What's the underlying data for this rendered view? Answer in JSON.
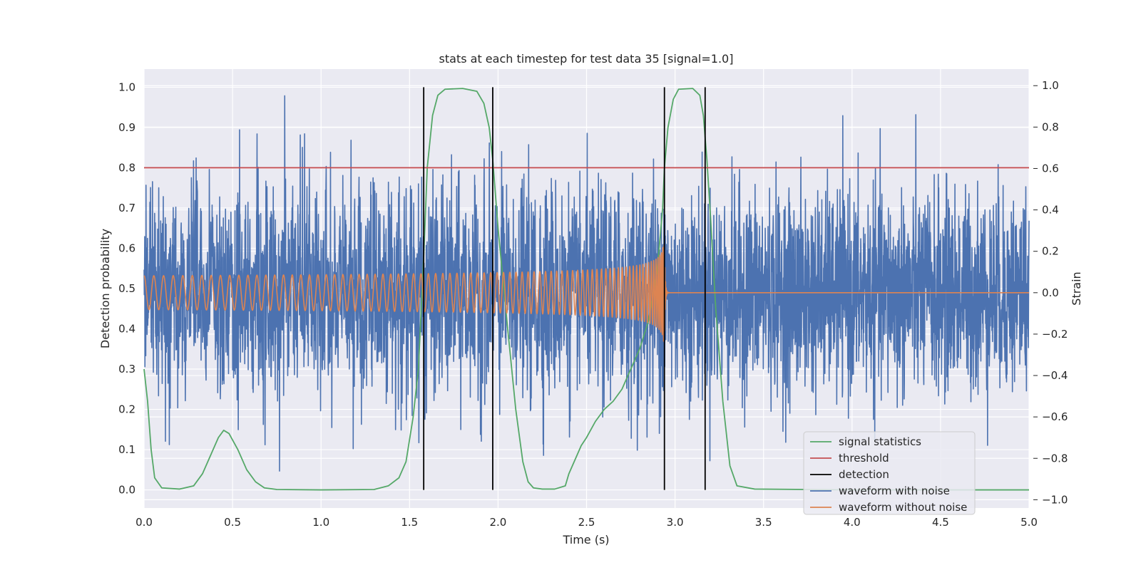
{
  "chart_data": {
    "type": "line",
    "title": "stats at each timestep for test data 35 [signal=1.0]",
    "xlabel": "Time (s)",
    "ylabel_left": "Detection probability",
    "ylabel_right": "Strain",
    "xlim": [
      0.0,
      5.0
    ],
    "ylim_left": [
      -0.045,
      1.045
    ],
    "ylim_right": [
      -1.04,
      1.08
    ],
    "x_ticks": [
      "0.0",
      "0.5",
      "1.0",
      "1.5",
      "2.0",
      "2.5",
      "3.0",
      "3.5",
      "4.0",
      "4.5",
      "5.0"
    ],
    "y_ticks_left": [
      "0.0",
      "0.1",
      "0.2",
      "0.3",
      "0.4",
      "0.5",
      "0.6",
      "0.7",
      "0.8",
      "0.9",
      "1.0"
    ],
    "y_ticks_right": [
      "−1.0",
      "−0.8",
      "−0.6",
      "−0.4",
      "−0.2",
      "0.0",
      "0.2",
      "0.4",
      "0.6",
      "0.8",
      "1.0"
    ],
    "grid": true,
    "legend_position": "lower right",
    "colors": {
      "signal_statistics": "#55a868",
      "threshold": "#c44e52",
      "detection": "#000000",
      "waveform_with_noise": "#4c72b0",
      "waveform_without_noise": "#dd8452",
      "axes_background": "#eaeaf2",
      "grid": "#ffffff"
    },
    "threshold": 0.8,
    "detections": [
      1.58,
      1.97,
      2.94,
      3.17
    ],
    "signal_statistics": {
      "x": [
        0.0,
        0.02,
        0.04,
        0.06,
        0.1,
        0.2,
        0.28,
        0.33,
        0.38,
        0.42,
        0.45,
        0.48,
        0.53,
        0.58,
        0.63,
        0.68,
        0.75,
        1.0,
        1.3,
        1.38,
        1.44,
        1.48,
        1.52,
        1.55,
        1.58,
        1.6,
        1.63,
        1.66,
        1.7,
        1.8,
        1.88,
        1.92,
        1.95,
        1.97,
        2.0,
        2.05,
        2.1,
        2.14,
        2.17,
        2.2,
        2.25,
        2.32,
        2.38,
        2.4,
        2.44,
        2.47,
        2.5,
        2.55,
        2.6,
        2.65,
        2.7,
        2.75,
        2.8,
        2.85,
        2.9,
        2.93,
        2.94,
        2.96,
        2.99,
        3.02,
        3.1,
        3.14,
        3.16,
        3.18,
        3.2,
        3.23,
        3.27,
        3.31,
        3.35,
        3.45,
        4.0,
        4.5,
        5.0
      ],
      "y": [
        0.3,
        0.22,
        0.1,
        0.03,
        0.005,
        0.002,
        0.01,
        0.04,
        0.09,
        0.13,
        0.148,
        0.14,
        0.1,
        0.05,
        0.02,
        0.005,
        0.001,
        0.0,
        0.001,
        0.01,
        0.03,
        0.07,
        0.18,
        0.3,
        0.58,
        0.8,
        0.93,
        0.98,
        0.995,
        0.997,
        0.99,
        0.96,
        0.9,
        0.82,
        0.65,
        0.42,
        0.2,
        0.07,
        0.02,
        0.005,
        0.002,
        0.002,
        0.01,
        0.04,
        0.08,
        0.11,
        0.13,
        0.17,
        0.2,
        0.22,
        0.25,
        0.3,
        0.35,
        0.42,
        0.55,
        0.7,
        0.8,
        0.9,
        0.97,
        0.995,
        0.997,
        0.98,
        0.93,
        0.82,
        0.68,
        0.45,
        0.22,
        0.06,
        0.01,
        0.002,
        0.0,
        0.0,
        0.0
      ]
    },
    "waveform_without_noise": {
      "amplitude_start": 0.035,
      "amplitude_peak": 0.28,
      "start_frequency_hz": 18,
      "merger_time": 2.94,
      "post_merger_value": 0.0
    },
    "waveform_with_noise": {
      "noise_level": 0.24,
      "max_abs": 1.0
    },
    "legend": [
      {
        "label": "signal statistics",
        "key": "signal_statistics"
      },
      {
        "label": "threshold",
        "key": "threshold"
      },
      {
        "label": "detection",
        "key": "detection"
      },
      {
        "label": "waveform with noise",
        "key": "waveform_with_noise"
      },
      {
        "label": "waveform without noise",
        "key": "waveform_without_noise"
      }
    ]
  }
}
